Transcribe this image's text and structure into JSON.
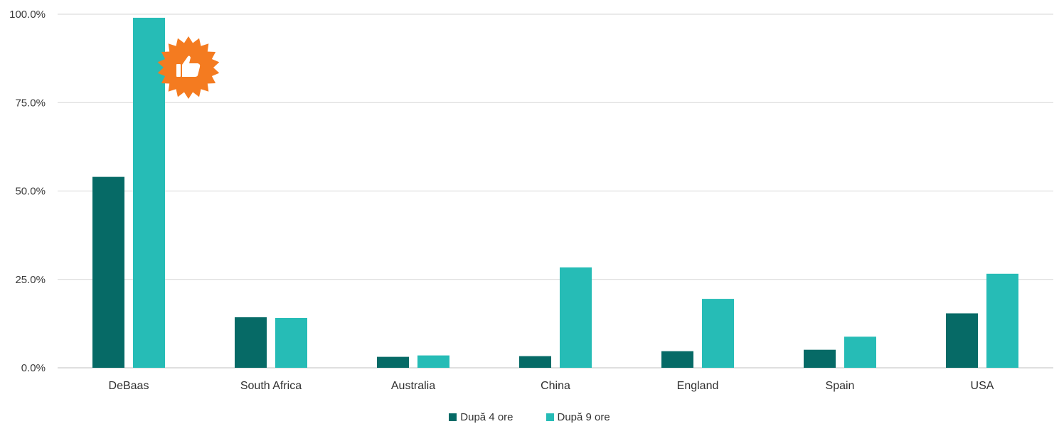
{
  "chart_data": {
    "type": "bar",
    "title": "",
    "xlabel": "",
    "ylabel": "",
    "ylim": [
      0,
      100
    ],
    "y_ticks": [
      "0.0%",
      "25.0%",
      "50.0%",
      "75.0%",
      "100.0%"
    ],
    "y_tick_values": [
      0,
      25,
      50,
      75,
      100
    ],
    "grid": true,
    "legend_position": "bottom",
    "categories": [
      "DeBaas",
      "South Africa",
      "Australia",
      "China",
      "England",
      "Spain",
      "USA"
    ],
    "series": [
      {
        "name": "După 4 ore",
        "color": "#066a66",
        "values": [
          54.0,
          14.3,
          3.1,
          3.3,
          4.7,
          5.1,
          15.4
        ]
      },
      {
        "name": "După 9 ore",
        "color": "#26bcb6",
        "values": [
          99.0,
          14.1,
          3.5,
          28.4,
          19.5,
          8.8,
          26.6
        ]
      }
    ],
    "annotations": [
      {
        "type": "badge",
        "icon": "thumbs-up-icon",
        "color": "#f47b20",
        "category": "DeBaas"
      }
    ]
  }
}
